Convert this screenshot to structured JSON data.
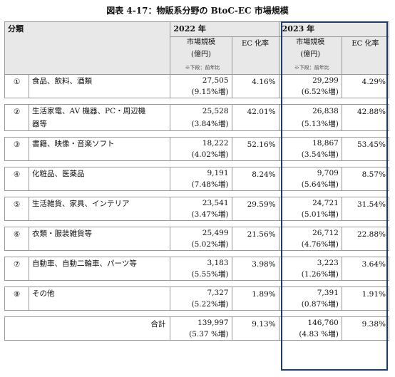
{
  "title": "図表 4-17：物販系分野の BtoC-EC 市場規模",
  "header": {
    "category": "分類",
    "year1": "2022 年",
    "year2": "2023 年",
    "market_size": "市場規模",
    "unit": "(億円)",
    "ec_rate": "EC 化率",
    "note": "※下段：前年比"
  },
  "rows": [
    {
      "no": "①",
      "name": "食品、飲料、酒類",
      "name2": "",
      "v2022": "27,505",
      "g2022": "(9.15%増)",
      "r2022": "4.16%",
      "v2023": "29,299",
      "g2023": "(6.52%増)",
      "r2023": "4.29%"
    },
    {
      "no": "②",
      "name": "生活家電、AV 機器、PC・周辺機",
      "name2": "器等",
      "v2022": "25,528",
      "g2022": "(3.84%増)",
      "r2022": "42.01%",
      "v2023": "26,838",
      "g2023": "(5.13%増)",
      "r2023": "42.88%"
    },
    {
      "no": "③",
      "name": "書籍、映像・音楽ソフト",
      "name2": "",
      "v2022": "18,222",
      "g2022": "(4.02%増)",
      "r2022": "52.16%",
      "v2023": "18,867",
      "g2023": "(3.54%増)",
      "r2023": "53.45%"
    },
    {
      "no": "④",
      "name": "化粧品、医薬品",
      "name2": "",
      "v2022": "9,191",
      "g2022": "(7.48%増)",
      "r2022": "8.24%",
      "v2023": "9,709",
      "g2023": "(5.64%増)",
      "r2023": "8.57%"
    },
    {
      "no": "⑤",
      "name": "生活雑貨、家具、インテリア",
      "name2": "",
      "v2022": "23,541",
      "g2022": "(3.47%増)",
      "r2022": "29.59%",
      "v2023": "24,721",
      "g2023": "(5.01%増)",
      "r2023": "31.54%"
    },
    {
      "no": "⑥",
      "name": "衣類・服装雑貨等",
      "name2": "",
      "v2022": "25,499",
      "g2022": "(5.02%増)",
      "r2022": "21.56%",
      "v2023": "26,712",
      "g2023": "(4.76%増)",
      "r2023": "22.88%"
    },
    {
      "no": "⑦",
      "name": "自動車、自動二輪車、パーツ等",
      "name2": "",
      "v2022": "3,183",
      "g2022": "(5.55%増)",
      "r2022": "3.98%",
      "v2023": "3,223",
      "g2023": "(1.26%増)",
      "r2023": "3.64%"
    },
    {
      "no": "⑧",
      "name": "その他",
      "name2": "",
      "v2022": "7,327",
      "g2022": "(5.22%増)",
      "r2022": "1.89%",
      "v2023": "7,391",
      "g2023": "(0.87%増)",
      "r2023": "1.91%"
    }
  ],
  "total": {
    "label": "合計",
    "v2022": "139,997",
    "g2022": "(5.37 %増)",
    "r2022": "9.13%",
    "v2023": "146,760",
    "g2023": "(4.83 %増)",
    "r2023": "9.38%"
  }
}
